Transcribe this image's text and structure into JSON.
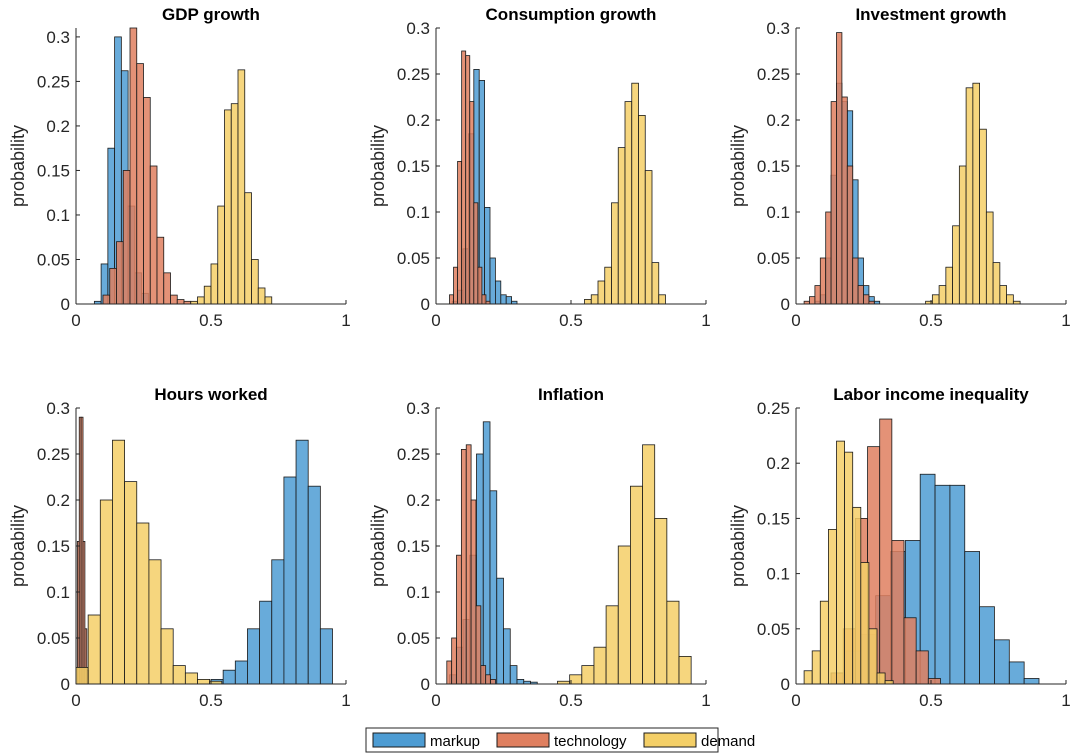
{
  "colors": {
    "markup": "#4d9cd3",
    "technology": "#df7f5f",
    "demand": "#f4cf67",
    "edge": "#1a1a1a"
  },
  "legend": [
    {
      "key": "markup",
      "label": "markup"
    },
    {
      "key": "technology",
      "label": "technology"
    },
    {
      "key": "demand",
      "label": "demand"
    }
  ],
  "chart_data": [
    {
      "type": "bar",
      "title": "GDP growth",
      "ylabel": "probability",
      "xlim": [
        0,
        1
      ],
      "ylim": [
        0,
        0.31
      ],
      "xticks": [
        0,
        0.5,
        1
      ],
      "xtick_labels": [
        "0",
        "0.5",
        "1"
      ],
      "yticks": [
        0,
        0.05,
        0.1,
        0.15,
        0.2,
        0.25,
        0.3
      ],
      "ytick_labels": [
        "0",
        "0.05",
        "0.1",
        "0.15",
        "0.2",
        "0.25",
        "0.3"
      ],
      "series": [
        {
          "key": "markup",
          "edges": [
            0.068,
            0.093,
            0.118,
            0.143,
            0.168,
            0.193,
            0.218,
            0.243,
            0.268
          ],
          "values": [
            0.003,
            0.045,
            0.175,
            0.3,
            0.262,
            0.11,
            0.035,
            0.012,
            0.003
          ]
        },
        {
          "key": "technology",
          "edges": [
            0.1,
            0.125,
            0.15,
            0.175,
            0.2,
            0.225,
            0.25,
            0.275,
            0.3,
            0.325,
            0.35,
            0.375,
            0.4,
            0.425
          ],
          "values": [
            0.01,
            0.04,
            0.07,
            0.15,
            0.31,
            0.27,
            0.232,
            0.155,
            0.075,
            0.035,
            0.01,
            0.005,
            0.003
          ]
        },
        {
          "key": "demand",
          "edges": [
            0.425,
            0.45,
            0.475,
            0.5,
            0.525,
            0.55,
            0.575,
            0.6,
            0.625,
            0.65,
            0.675,
            0.7,
            0.725
          ],
          "values": [
            0.003,
            0.008,
            0.02,
            0.045,
            0.11,
            0.218,
            0.225,
            0.263,
            0.125,
            0.05,
            0.018,
            0.008
          ]
        }
      ]
    },
    {
      "type": "bar",
      "title": "Consumption growth",
      "ylabel": "probability",
      "xlim": [
        0,
        1
      ],
      "ylim": [
        0,
        0.3
      ],
      "xticks": [
        0,
        0.5,
        1
      ],
      "xtick_labels": [
        "0",
        "0.5",
        "1"
      ],
      "yticks": [
        0,
        0.05,
        0.1,
        0.15,
        0.2,
        0.25,
        0.3
      ],
      "ytick_labels": [
        "0",
        "0.05",
        "0.1",
        "0.15",
        "0.2",
        "0.25",
        "0.3"
      ],
      "series": [
        {
          "key": "markup",
          "edges": [
            0.06,
            0.08,
            0.1,
            0.12,
            0.14,
            0.16,
            0.18,
            0.2,
            0.22,
            0.24,
            0.26,
            0.28,
            0.3
          ],
          "values": [
            0.003,
            0.015,
            0.06,
            0.185,
            0.255,
            0.243,
            0.105,
            0.05,
            0.025,
            0.01,
            0.008,
            0.003
          ]
        },
        {
          "key": "technology",
          "edges": [
            0.05,
            0.065,
            0.08,
            0.095,
            0.11,
            0.125,
            0.14,
            0.155,
            0.17,
            0.185,
            0.2
          ],
          "values": [
            0.01,
            0.04,
            0.155,
            0.275,
            0.27,
            0.22,
            0.11,
            0.04,
            0.01,
            0.003
          ]
        },
        {
          "key": "demand",
          "edges": [
            0.55,
            0.575,
            0.6,
            0.625,
            0.65,
            0.675,
            0.7,
            0.725,
            0.75,
            0.775,
            0.8,
            0.825,
            0.85
          ],
          "values": [
            0.005,
            0.01,
            0.025,
            0.04,
            0.11,
            0.17,
            0.22,
            0.24,
            0.205,
            0.145,
            0.045,
            0.01
          ]
        }
      ]
    },
    {
      "type": "bar",
      "title": "Investment growth",
      "ylabel": "probability",
      "xlim": [
        0,
        1
      ],
      "ylim": [
        0,
        0.3
      ],
      "xticks": [
        0,
        0.5,
        1
      ],
      "xtick_labels": [
        "0",
        "0.5",
        "1"
      ],
      "yticks": [
        0,
        0.05,
        0.1,
        0.15,
        0.2,
        0.25,
        0.3
      ],
      "ytick_labels": [
        "0",
        "0.05",
        "0.1",
        "0.15",
        "0.2",
        "0.25",
        "0.3"
      ],
      "series": [
        {
          "key": "markup",
          "edges": [
            0.07,
            0.09,
            0.11,
            0.13,
            0.15,
            0.17,
            0.19,
            0.21,
            0.23,
            0.25,
            0.27,
            0.29,
            0.31
          ],
          "values": [
            0.003,
            0.01,
            0.05,
            0.14,
            0.24,
            0.22,
            0.21,
            0.135,
            0.05,
            0.02,
            0.008,
            0.003
          ]
        },
        {
          "key": "technology",
          "edges": [
            0.03,
            0.05,
            0.07,
            0.09,
            0.11,
            0.13,
            0.15,
            0.17,
            0.19,
            0.21,
            0.23,
            0.25,
            0.27,
            0.29
          ],
          "values": [
            0.003,
            0.008,
            0.02,
            0.05,
            0.1,
            0.22,
            0.295,
            0.225,
            0.15,
            0.05,
            0.02,
            0.01,
            0.003
          ]
        },
        {
          "key": "demand",
          "edges": [
            0.48,
            0.505,
            0.53,
            0.555,
            0.58,
            0.605,
            0.63,
            0.655,
            0.68,
            0.705,
            0.73,
            0.755,
            0.78,
            0.805,
            0.83
          ],
          "values": [
            0.003,
            0.01,
            0.02,
            0.04,
            0.085,
            0.15,
            0.235,
            0.24,
            0.19,
            0.1,
            0.045,
            0.02,
            0.01,
            0.003
          ]
        }
      ]
    },
    {
      "type": "bar",
      "title": "Hours worked",
      "ylabel": "probability",
      "xlim": [
        0,
        1
      ],
      "ylim": [
        0,
        0.3
      ],
      "xticks": [
        0,
        0.5,
        1
      ],
      "xtick_labels": [
        "0",
        "0.5",
        "1"
      ],
      "yticks": [
        0,
        0.05,
        0.1,
        0.15,
        0.2,
        0.25,
        0.3
      ],
      "ytick_labels": [
        "0",
        "0.05",
        "0.1",
        "0.15",
        "0.2",
        "0.25",
        "0.3"
      ],
      "series": [
        {
          "key": "markup",
          "edges": [
            0.5,
            0.545,
            0.59,
            0.635,
            0.68,
            0.725,
            0.77,
            0.815,
            0.86,
            0.905,
            0.95
          ],
          "values": [
            0.005,
            0.015,
            0.025,
            0.06,
            0.09,
            0.135,
            0.225,
            0.265,
            0.215,
            0.06
          ]
        },
        {
          "key": "technology",
          "edges": [
            0.005,
            0.012,
            0.019,
            0.026,
            0.033,
            0.04,
            0.047
          ],
          "values": [
            0.155,
            0.29,
            0.29,
            0.155,
            0.06,
            0.015
          ]
        },
        {
          "key": "demand",
          "edges": [
            0.0,
            0.045,
            0.09,
            0.135,
            0.18,
            0.225,
            0.27,
            0.315,
            0.36,
            0.405,
            0.45,
            0.495,
            0.54
          ],
          "values": [
            0.018,
            0.075,
            0.2,
            0.265,
            0.22,
            0.175,
            0.135,
            0.06,
            0.02,
            0.012,
            0.005,
            0.003
          ]
        }
      ]
    },
    {
      "type": "bar",
      "title": "Inflation",
      "ylabel": "probability",
      "xlim": [
        0,
        1
      ],
      "ylim": [
        0,
        0.3
      ],
      "xticks": [
        0,
        0.5,
        1
      ],
      "xtick_labels": [
        "0",
        "0.5",
        "1"
      ],
      "yticks": [
        0,
        0.05,
        0.1,
        0.15,
        0.2,
        0.25,
        0.3
      ],
      "ytick_labels": [
        "0",
        "0.05",
        "0.1",
        "0.15",
        "0.2",
        "0.25",
        "0.3"
      ],
      "series": [
        {
          "key": "markup",
          "edges": [
            0.05,
            0.075,
            0.1,
            0.125,
            0.15,
            0.175,
            0.2,
            0.225,
            0.25,
            0.275,
            0.3,
            0.325,
            0.35,
            0.375
          ],
          "values": [
            0.01,
            0.04,
            0.07,
            0.14,
            0.25,
            0.285,
            0.21,
            0.115,
            0.06,
            0.02,
            0.005,
            0.003,
            0.002
          ]
        },
        {
          "key": "technology",
          "edges": [
            0.04,
            0.058,
            0.076,
            0.094,
            0.112,
            0.13,
            0.148,
            0.166,
            0.184,
            0.202,
            0.22
          ],
          "values": [
            0.025,
            0.05,
            0.14,
            0.255,
            0.26,
            0.2,
            0.085,
            0.02,
            0.01,
            0.005
          ]
        },
        {
          "key": "demand",
          "edges": [
            0.45,
            0.495,
            0.54,
            0.585,
            0.63,
            0.675,
            0.72,
            0.765,
            0.81,
            0.855,
            0.9,
            0.945
          ],
          "values": [
            0.003,
            0.01,
            0.02,
            0.04,
            0.085,
            0.15,
            0.215,
            0.26,
            0.18,
            0.09,
            0.03
          ]
        }
      ]
    },
    {
      "type": "bar",
      "title": "Labor income inequality",
      "ylabel": "probability",
      "xlim": [
        0,
        1
      ],
      "ylim": [
        0,
        0.25
      ],
      "xticks": [
        0,
        0.5,
        1
      ],
      "xtick_labels": [
        "0",
        "0.5",
        "1"
      ],
      "yticks": [
        0,
        0.05,
        0.1,
        0.15,
        0.2,
        0.25
      ],
      "ytick_labels": [
        "0",
        "0.05",
        "0.1",
        "0.15",
        "0.2",
        "0.25"
      ],
      "series": [
        {
          "key": "markup",
          "edges": [
            0.13,
            0.185,
            0.24,
            0.295,
            0.35,
            0.405,
            0.46,
            0.515,
            0.57,
            0.625,
            0.68,
            0.735,
            0.79,
            0.845,
            0.9
          ],
          "values": [
            0.01,
            0.03,
            0.045,
            0.08,
            0.12,
            0.13,
            0.19,
            0.18,
            0.18,
            0.12,
            0.07,
            0.04,
            0.02,
            0.005
          ]
        },
        {
          "key": "technology",
          "edges": [
            0.13,
            0.175,
            0.22,
            0.265,
            0.31,
            0.355,
            0.4,
            0.445,
            0.49,
            0.535
          ],
          "values": [
            0.01,
            0.05,
            0.15,
            0.215,
            0.24,
            0.13,
            0.06,
            0.03,
            0.005
          ]
        },
        {
          "key": "demand",
          "edges": [
            0.03,
            0.06,
            0.09,
            0.12,
            0.15,
            0.18,
            0.21,
            0.24,
            0.27,
            0.3,
            0.33,
            0.36
          ],
          "values": [
            0.012,
            0.03,
            0.075,
            0.14,
            0.22,
            0.21,
            0.16,
            0.11,
            0.05,
            0.01,
            0.003
          ]
        }
      ]
    }
  ]
}
